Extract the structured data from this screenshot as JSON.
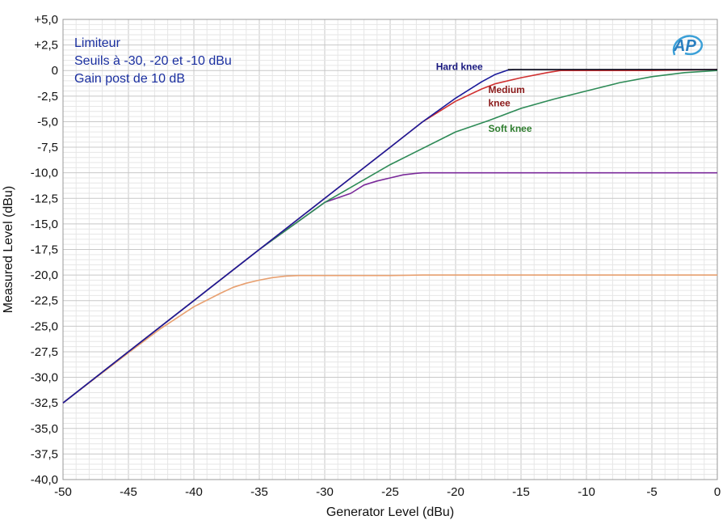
{
  "chart_data": {
    "type": "line",
    "title": "",
    "xlabel": "Generator Level (dBu)",
    "ylabel": "Measured Level (dBu)",
    "xlim": [
      -50,
      0
    ],
    "ylim": [
      -40,
      5
    ],
    "x_ticks": [
      -50,
      -45,
      -40,
      -35,
      -30,
      -25,
      -20,
      -15,
      -10,
      -5,
      0
    ],
    "x_tick_labels": [
      "-50",
      "-45",
      "-40",
      "-35",
      "-30",
      "-25",
      "-20",
      "-15",
      "-10",
      "-5",
      "0"
    ],
    "y_ticks": [
      5,
      2.5,
      0,
      -2.5,
      -5,
      -7.5,
      -10,
      -12.5,
      -15,
      -17.5,
      -20,
      -22.5,
      -25,
      -27.5,
      -30,
      -32.5,
      -35,
      -37.5,
      -40
    ],
    "y_tick_labels": [
      "+5,0",
      "+2,5",
      "0",
      "-2,5",
      "-5,0",
      "-7,5",
      "-10,0",
      "-12,5",
      "-15,0",
      "-17,5",
      "-20,0",
      "-22,5",
      "-25,0",
      "-27,5",
      "-30,0",
      "-32,5",
      "-35,0",
      "-37,5",
      "-40,0"
    ],
    "grid": true,
    "annotation_lines": [
      "Limiteur",
      "Seuils à -30, -20 et -10 dBu",
      "Gain post de 10 dB"
    ],
    "logo_text": "AP",
    "colors": {
      "annotation": "#1a2fa0",
      "hard_knee_label": "#1a1a80",
      "medium_knee_label": "#8b1a1a",
      "soft_knee_label": "#2e7d2e"
    },
    "series": [
      {
        "color": "#e8a070",
        "x": [
          -50,
          -45,
          -42.5,
          -40,
          -38,
          -37,
          -36,
          -35,
          -34,
          -33,
          -32,
          -30,
          -25,
          -22.5,
          -20,
          -15,
          -10,
          -5,
          0
        ],
        "y": [
          -32.5,
          -27.6,
          -25.2,
          -23.1,
          -21.8,
          -21.2,
          -20.8,
          -20.5,
          -20.25,
          -20.1,
          -20.05,
          -20.05,
          -20.05,
          -20.0,
          -20.0,
          -20.0,
          -20.0,
          -20.0,
          -20.0
        ]
      },
      {
        "color": "#7a2a9a",
        "x": [
          -50,
          -45,
          -40,
          -35,
          -30,
          -28,
          -27,
          -26,
          -25,
          -24,
          -23,
          -22.5,
          -20,
          -15,
          -10,
          -5,
          0
        ],
        "y": [
          -32.5,
          -27.5,
          -22.5,
          -17.5,
          -12.9,
          -12.0,
          -11.2,
          -10.8,
          -10.5,
          -10.2,
          -10.05,
          -10.0,
          -10.0,
          -10.0,
          -10.0,
          -10.0,
          -10.0
        ]
      },
      {
        "name": "Soft knee",
        "color": "#2e8b57",
        "x": [
          -50,
          -45,
          -40,
          -35,
          -30,
          -25,
          -20,
          -17.5,
          -15,
          -12.5,
          -10,
          -7.5,
          -5,
          -2.5,
          0
        ],
        "y": [
          -32.5,
          -27.5,
          -22.5,
          -17.5,
          -12.9,
          -9.2,
          -6.0,
          -4.9,
          -3.7,
          -2.8,
          -2.0,
          -1.2,
          -0.6,
          -0.2,
          0.0
        ]
      },
      {
        "name": "Medium knee",
        "color": "#d03030",
        "x": [
          -50,
          -45,
          -40,
          -35,
          -30,
          -25,
          -22.5,
          -20,
          -18,
          -17,
          -15,
          -13,
          -12,
          -10,
          -5,
          0
        ],
        "y": [
          -32.5,
          -27.5,
          -22.5,
          -17.5,
          -12.5,
          -7.5,
          -5.0,
          -3.0,
          -1.8,
          -1.3,
          -0.7,
          -0.2,
          0.0,
          0.0,
          0.0,
          0.1
        ]
      },
      {
        "name": "Hard knee",
        "color": "#1a1a9a",
        "x": [
          -50,
          -45,
          -40,
          -35,
          -30,
          -25,
          -22.5,
          -20,
          -18,
          -17,
          -16,
          -15.5,
          -15,
          -10,
          -5,
          0
        ],
        "y": [
          -32.5,
          -27.5,
          -22.5,
          -17.5,
          -12.5,
          -7.5,
          -5.0,
          -2.7,
          -1.1,
          -0.4,
          0.05,
          0.1,
          0.1,
          0.1,
          0.1,
          0.1
        ]
      },
      {
        "color": "#111111",
        "x": [
          -16,
          -15,
          -10,
          -5,
          0
        ],
        "y": [
          0.1,
          0.1,
          0.1,
          0.1,
          0.1
        ]
      }
    ],
    "series_labels": [
      {
        "text": "Hard knee",
        "color": "#1a1a80",
        "x": -21.5,
        "y": 0.05
      },
      {
        "text": "Medium",
        "color": "#8b1a1a",
        "x": -17.5,
        "y": -2.2
      },
      {
        "text": "knee",
        "color": "#8b1a1a",
        "x": -17.5,
        "y": -3.5
      },
      {
        "text": "Soft knee",
        "color": "#2e7d2e",
        "x": -17.5,
        "y": -6.0
      }
    ]
  }
}
